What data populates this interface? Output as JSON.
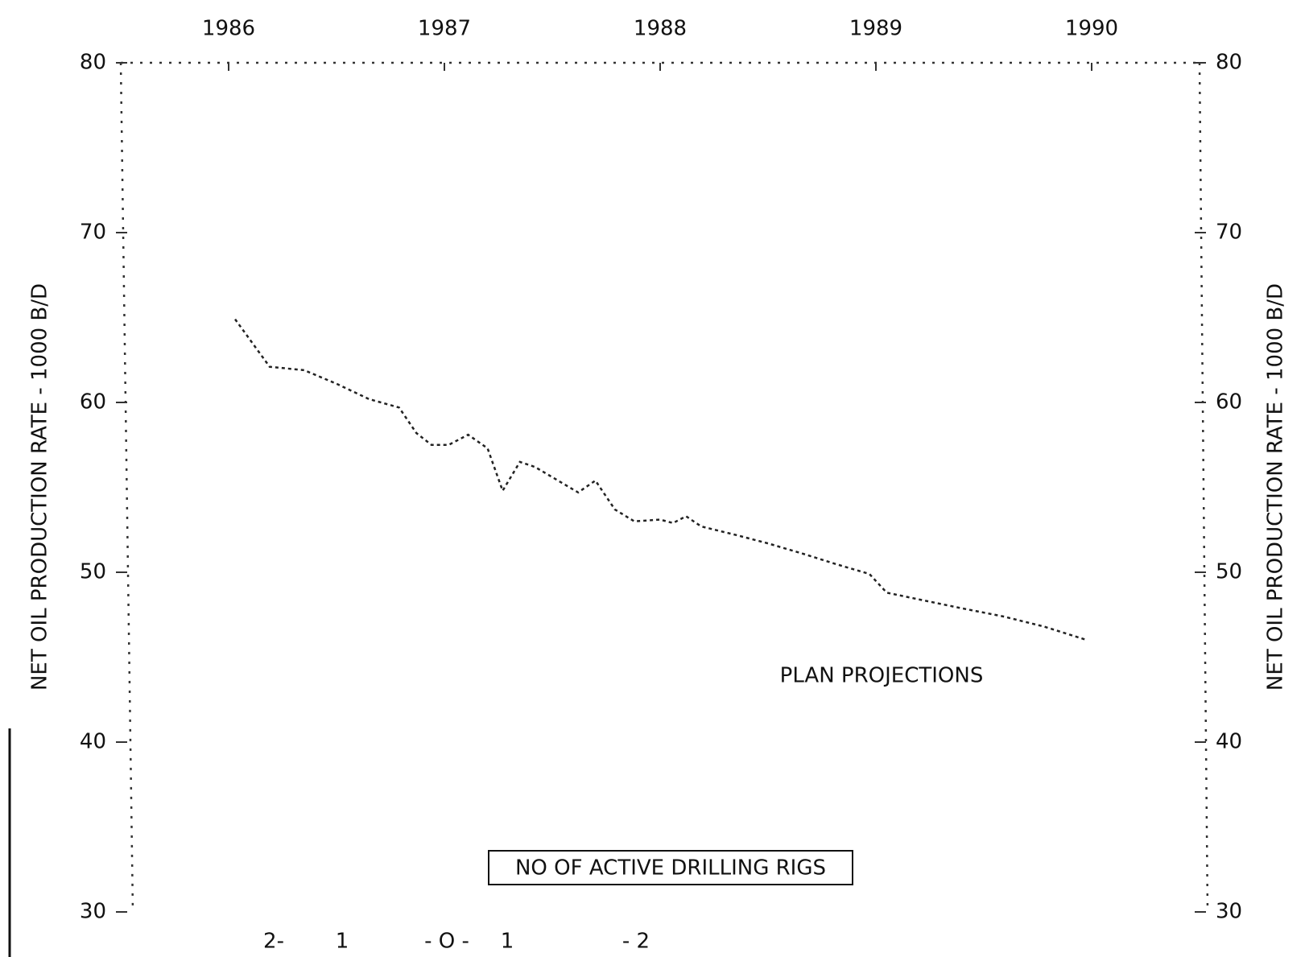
{
  "chart_data": {
    "type": "line",
    "y_label": "NET OIL PRODUCTION RATE - 1000 B/D",
    "y2_label": "NET OIL PRODUCTION RATE - 1000 B/D",
    "annotations": [
      "PLAN PROJECTIONS",
      "NO OF ACTIVE DRILLING RIGS"
    ],
    "bottom_labels": [
      "2-",
      "1",
      "- O -",
      "1",
      "- 2"
    ],
    "x": [
      1986.03,
      1986.19,
      1986.35,
      1986.5,
      1986.65,
      1986.79,
      1986.87,
      1986.94,
      1987.02,
      1987.11,
      1987.2,
      1987.27,
      1987.35,
      1987.42,
      1987.62,
      1987.7,
      1987.79,
      1987.88,
      1988.0,
      1988.06,
      1988.12,
      1988.19,
      1988.35,
      1988.5,
      1988.66,
      1988.81,
      1988.97,
      1989.05,
      1989.2,
      1989.39,
      1989.59,
      1989.78,
      1989.98
    ],
    "series": [
      {
        "color": "#222222",
        "values": [
          64.9,
          62.1,
          61.9,
          61.1,
          60.2,
          59.7,
          58.2,
          57.5,
          57.5,
          58.1,
          57.3,
          54.8,
          56.5,
          56.2,
          54.7,
          55.4,
          53.7,
          53.0,
          53.1,
          52.9,
          53.3,
          52.7,
          52.2,
          51.7,
          51.1,
          50.5,
          49.9,
          48.8,
          48.4,
          47.9,
          47.4,
          46.8,
          46.0
        ]
      }
    ],
    "xlim": [
      1985.5,
      1990.5
    ],
    "xticks": [
      1986,
      1987,
      1988,
      1989,
      1990
    ],
    "ylim": [
      30,
      80
    ],
    "yticks": [
      30,
      40,
      50,
      60,
      70,
      80
    ],
    "y2lim": [
      30,
      80
    ],
    "y2ticks": [
      30,
      40,
      50,
      60,
      70,
      80
    ]
  }
}
